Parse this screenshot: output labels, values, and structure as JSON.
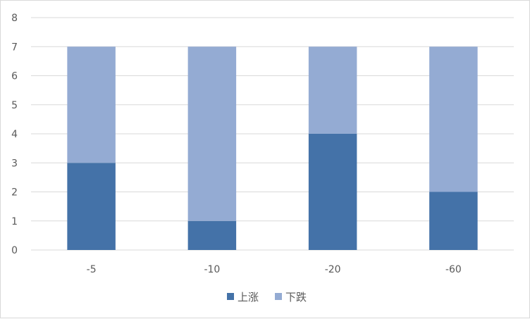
{
  "chart_data": {
    "type": "bar",
    "stacked": true,
    "categories": [
      "-5",
      "-10",
      "-20",
      "-60"
    ],
    "series": [
      {
        "name": "上涨",
        "values": [
          3,
          1,
          4,
          2
        ],
        "color": "#4472a8"
      },
      {
        "name": "下跌",
        "values": [
          4,
          6,
          3,
          5
        ],
        "color": "#94abd3"
      }
    ],
    "title": "",
    "xlabel": "",
    "ylabel": "",
    "ylim": [
      0,
      8
    ],
    "yticks": [
      0,
      1,
      2,
      3,
      4,
      5,
      6,
      7,
      8
    ],
    "grid": true,
    "legend_position": "bottom",
    "colors": {
      "grid": "#d9d9d9",
      "text": "#595959",
      "border": "#d9d9d9"
    }
  }
}
